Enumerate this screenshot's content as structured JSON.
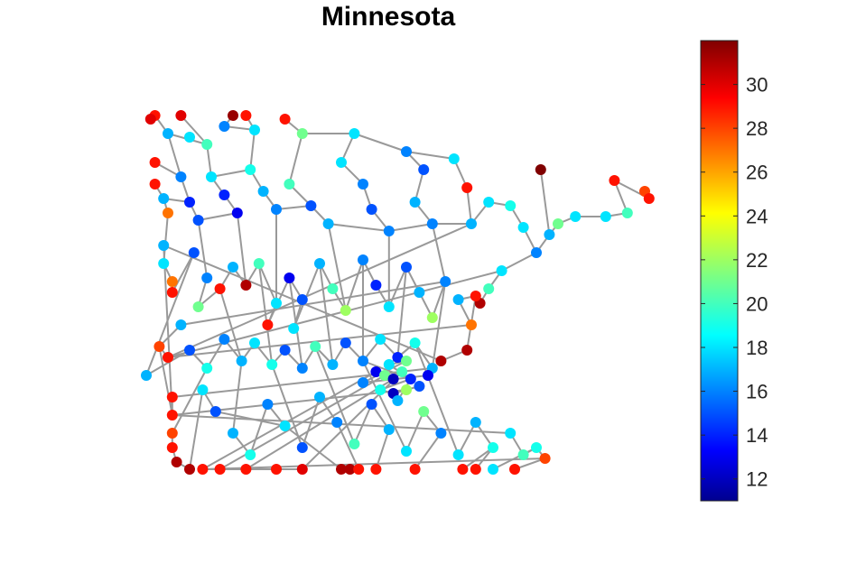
{
  "chart_data": {
    "type": "scatter",
    "subtype": "graph-network",
    "title": "Minnesota",
    "xlabel": "",
    "ylabel": "",
    "axes_visible": false,
    "edge_color": "#999999",
    "colormap": "jet",
    "colorbar": {
      "range": [
        11,
        32
      ],
      "ticks": [
        12,
        14,
        16,
        18,
        20,
        22,
        24,
        26,
        28,
        30
      ],
      "tick_labels": [
        "12",
        "14",
        "16",
        "18",
        "20",
        "22",
        "24",
        "26",
        "28",
        "30"
      ],
      "placement": "right"
    },
    "nodes": [
      {
        "x": 0.02,
        "y": 0.98,
        "v": 29
      },
      {
        "x": 0.08,
        "y": 0.98,
        "v": 30
      },
      {
        "x": 0.2,
        "y": 0.98,
        "v": 31.5
      },
      {
        "x": 0.23,
        "y": 0.98,
        "v": 29
      },
      {
        "x": 0.32,
        "y": 0.97,
        "v": 29
      },
      {
        "x": 0.01,
        "y": 0.97,
        "v": 30
      },
      {
        "x": 0.05,
        "y": 0.93,
        "v": 17
      },
      {
        "x": 0.1,
        "y": 0.92,
        "v": 18
      },
      {
        "x": 0.18,
        "y": 0.95,
        "v": 16
      },
      {
        "x": 0.25,
        "y": 0.94,
        "v": 18
      },
      {
        "x": 0.36,
        "y": 0.93,
        "v": 21
      },
      {
        "x": 0.48,
        "y": 0.93,
        "v": 18
      },
      {
        "x": 0.14,
        "y": 0.9,
        "v": 20
      },
      {
        "x": 0.02,
        "y": 0.85,
        "v": 29
      },
      {
        "x": 0.02,
        "y": 0.79,
        "v": 29
      },
      {
        "x": 0.04,
        "y": 0.75,
        "v": 17
      },
      {
        "x": 0.05,
        "y": 0.71,
        "v": 27
      },
      {
        "x": 0.08,
        "y": 0.81,
        "v": 16
      },
      {
        "x": 0.1,
        "y": 0.74,
        "v": 14
      },
      {
        "x": 0.12,
        "y": 0.69,
        "v": 15
      },
      {
        "x": 0.15,
        "y": 0.81,
        "v": 18
      },
      {
        "x": 0.18,
        "y": 0.76,
        "v": 14
      },
      {
        "x": 0.21,
        "y": 0.71,
        "v": 13
      },
      {
        "x": 0.24,
        "y": 0.83,
        "v": 19
      },
      {
        "x": 0.27,
        "y": 0.77,
        "v": 17
      },
      {
        "x": 0.3,
        "y": 0.72,
        "v": 16
      },
      {
        "x": 0.33,
        "y": 0.79,
        "v": 20
      },
      {
        "x": 0.38,
        "y": 0.73,
        "v": 15
      },
      {
        "x": 0.42,
        "y": 0.68,
        "v": 17
      },
      {
        "x": 0.45,
        "y": 0.85,
        "v": 18
      },
      {
        "x": 0.5,
        "y": 0.79,
        "v": 16
      },
      {
        "x": 0.52,
        "y": 0.72,
        "v": 15
      },
      {
        "x": 0.56,
        "y": 0.66,
        "v": 16
      },
      {
        "x": 0.6,
        "y": 0.88,
        "v": 16
      },
      {
        "x": 0.64,
        "y": 0.83,
        "v": 15
      },
      {
        "x": 0.62,
        "y": 0.74,
        "v": 17
      },
      {
        "x": 0.66,
        "y": 0.68,
        "v": 16
      },
      {
        "x": 0.71,
        "y": 0.86,
        "v": 18
      },
      {
        "x": 0.74,
        "y": 0.78,
        "v": 29
      },
      {
        "x": 0.75,
        "y": 0.68,
        "v": 17
      },
      {
        "x": 0.79,
        "y": 0.74,
        "v": 18
      },
      {
        "x": 0.84,
        "y": 0.73,
        "v": 19
      },
      {
        "x": 0.87,
        "y": 0.67,
        "v": 18
      },
      {
        "x": 0.9,
        "y": 0.6,
        "v": 16
      },
      {
        "x": 0.93,
        "y": 0.65,
        "v": 17
      },
      {
        "x": 0.95,
        "y": 0.68,
        "v": 21
      },
      {
        "x": 0.91,
        "y": 0.83,
        "v": 32
      },
      {
        "x": 0.99,
        "y": 0.7,
        "v": 18
      },
      {
        "x": 1.06,
        "y": 0.7,
        "v": 18
      },
      {
        "x": 1.11,
        "y": 0.71,
        "v": 20
      },
      {
        "x": 1.08,
        "y": 0.8,
        "v": 29
      },
      {
        "x": 1.15,
        "y": 0.77,
        "v": 28
      },
      {
        "x": 1.16,
        "y": 0.75,
        "v": 29
      },
      {
        "x": 0.82,
        "y": 0.55,
        "v": 18
      },
      {
        "x": 0.79,
        "y": 0.5,
        "v": 20
      },
      {
        "x": 0.77,
        "y": 0.46,
        "v": 31
      },
      {
        "x": 0.76,
        "y": 0.48,
        "v": 29
      },
      {
        "x": 0.72,
        "y": 0.47,
        "v": 17
      },
      {
        "x": 0.75,
        "y": 0.4,
        "v": 27
      },
      {
        "x": 0.74,
        "y": 0.33,
        "v": 31
      },
      {
        "x": 0.68,
        "y": 0.3,
        "v": 31
      },
      {
        "x": 0.04,
        "y": 0.62,
        "v": 17
      },
      {
        "x": 0.04,
        "y": 0.57,
        "v": 18
      },
      {
        "x": 0.06,
        "y": 0.52,
        "v": 27
      },
      {
        "x": 0.06,
        "y": 0.49,
        "v": 29
      },
      {
        "x": 0.11,
        "y": 0.6,
        "v": 15
      },
      {
        "x": 0.14,
        "y": 0.53,
        "v": 16
      },
      {
        "x": 0.12,
        "y": 0.45,
        "v": 21
      },
      {
        "x": 0.17,
        "y": 0.5,
        "v": 29
      },
      {
        "x": 0.2,
        "y": 0.56,
        "v": 17
      },
      {
        "x": 0.23,
        "y": 0.51,
        "v": 31
      },
      {
        "x": 0.26,
        "y": 0.57,
        "v": 20
      },
      {
        "x": 0.3,
        "y": 0.46,
        "v": 18
      },
      {
        "x": 0.28,
        "y": 0.4,
        "v": 29
      },
      {
        "x": 0.33,
        "y": 0.53,
        "v": 13
      },
      {
        "x": 0.36,
        "y": 0.47,
        "v": 15
      },
      {
        "x": 0.34,
        "y": 0.39,
        "v": 18
      },
      {
        "x": 0.4,
        "y": 0.57,
        "v": 17
      },
      {
        "x": 0.43,
        "y": 0.5,
        "v": 20
      },
      {
        "x": 0.46,
        "y": 0.44,
        "v": 22
      },
      {
        "x": 0.5,
        "y": 0.58,
        "v": 16
      },
      {
        "x": 0.53,
        "y": 0.51,
        "v": 14
      },
      {
        "x": 0.56,
        "y": 0.45,
        "v": 18
      },
      {
        "x": 0.6,
        "y": 0.56,
        "v": 15
      },
      {
        "x": 0.63,
        "y": 0.49,
        "v": 17
      },
      {
        "x": 0.66,
        "y": 0.42,
        "v": 22
      },
      {
        "x": 0.69,
        "y": 0.52,
        "v": 16
      },
      {
        "x": 0.08,
        "y": 0.4,
        "v": 17
      },
      {
        "x": 0.03,
        "y": 0.34,
        "v": 28
      },
      {
        "x": 0.05,
        "y": 0.31,
        "v": 29
      },
      {
        "x": 0.0,
        "y": 0.26,
        "v": 17
      },
      {
        "x": 0.1,
        "y": 0.33,
        "v": 15
      },
      {
        "x": 0.14,
        "y": 0.28,
        "v": 19
      },
      {
        "x": 0.18,
        "y": 0.36,
        "v": 16
      },
      {
        "x": 0.22,
        "y": 0.3,
        "v": 17
      },
      {
        "x": 0.25,
        "y": 0.35,
        "v": 18
      },
      {
        "x": 0.29,
        "y": 0.29,
        "v": 19
      },
      {
        "x": 0.32,
        "y": 0.33,
        "v": 15
      },
      {
        "x": 0.36,
        "y": 0.28,
        "v": 16
      },
      {
        "x": 0.39,
        "y": 0.34,
        "v": 20
      },
      {
        "x": 0.43,
        "y": 0.29,
        "v": 17
      },
      {
        "x": 0.46,
        "y": 0.35,
        "v": 15
      },
      {
        "x": 0.5,
        "y": 0.3,
        "v": 16
      },
      {
        "x": 0.54,
        "y": 0.36,
        "v": 18
      },
      {
        "x": 0.58,
        "y": 0.31,
        "v": 14
      },
      {
        "x": 0.62,
        "y": 0.35,
        "v": 19
      },
      {
        "x": 0.66,
        "y": 0.28,
        "v": 17
      },
      {
        "x": 0.06,
        "y": 0.2,
        "v": 29
      },
      {
        "x": 0.06,
        "y": 0.15,
        "v": 29
      },
      {
        "x": 0.06,
        "y": 0.1,
        "v": 28
      },
      {
        "x": 0.06,
        "y": 0.06,
        "v": 29
      },
      {
        "x": 0.07,
        "y": 0.02,
        "v": 31
      },
      {
        "x": 0.1,
        "y": 0.0,
        "v": 31
      },
      {
        "x": 0.13,
        "y": 0.22,
        "v": 18
      },
      {
        "x": 0.16,
        "y": 0.16,
        "v": 15
      },
      {
        "x": 0.2,
        "y": 0.1,
        "v": 17
      },
      {
        "x": 0.24,
        "y": 0.04,
        "v": 19
      },
      {
        "x": 0.28,
        "y": 0.18,
        "v": 16
      },
      {
        "x": 0.32,
        "y": 0.12,
        "v": 18
      },
      {
        "x": 0.36,
        "y": 0.06,
        "v": 15
      },
      {
        "x": 0.4,
        "y": 0.2,
        "v": 17
      },
      {
        "x": 0.44,
        "y": 0.13,
        "v": 16
      },
      {
        "x": 0.48,
        "y": 0.07,
        "v": 20
      },
      {
        "x": 0.52,
        "y": 0.18,
        "v": 15
      },
      {
        "x": 0.56,
        "y": 0.11,
        "v": 17
      },
      {
        "x": 0.6,
        "y": 0.05,
        "v": 18
      },
      {
        "x": 0.64,
        "y": 0.16,
        "v": 21
      },
      {
        "x": 0.68,
        "y": 0.1,
        "v": 16
      },
      {
        "x": 0.72,
        "y": 0.04,
        "v": 18
      },
      {
        "x": 0.76,
        "y": 0.13,
        "v": 17
      },
      {
        "x": 0.8,
        "y": 0.06,
        "v": 19
      },
      {
        "x": 0.84,
        "y": 0.1,
        "v": 18
      },
      {
        "x": 0.87,
        "y": 0.04,
        "v": 20
      },
      {
        "x": 0.9,
        "y": 0.06,
        "v": 19
      },
      {
        "x": 0.92,
        "y": 0.03,
        "v": 28
      },
      {
        "x": 0.13,
        "y": 0.0,
        "v": 29
      },
      {
        "x": 0.17,
        "y": 0.0,
        "v": 29
      },
      {
        "x": 0.23,
        "y": 0.0,
        "v": 29
      },
      {
        "x": 0.3,
        "y": 0.0,
        "v": 29
      },
      {
        "x": 0.36,
        "y": 0.0,
        "v": 30
      },
      {
        "x": 0.45,
        "y": 0.0,
        "v": 31
      },
      {
        "x": 0.47,
        "y": 0.0,
        "v": 31
      },
      {
        "x": 0.49,
        "y": 0.0,
        "v": 29
      },
      {
        "x": 0.53,
        "y": 0.0,
        "v": 29
      },
      {
        "x": 0.62,
        "y": 0.0,
        "v": 29
      },
      {
        "x": 0.73,
        "y": 0.0,
        "v": 29
      },
      {
        "x": 0.76,
        "y": 0.0,
        "v": 29
      },
      {
        "x": 0.8,
        "y": 0.0,
        "v": 18
      },
      {
        "x": 0.85,
        "y": 0.0,
        "v": 29
      },
      {
        "x": 0.53,
        "y": 0.27,
        "v": 13
      },
      {
        "x": 0.55,
        "y": 0.26,
        "v": 21
      },
      {
        "x": 0.57,
        "y": 0.25,
        "v": 12
      },
      {
        "x": 0.59,
        "y": 0.27,
        "v": 20
      },
      {
        "x": 0.61,
        "y": 0.25,
        "v": 14
      },
      {
        "x": 0.54,
        "y": 0.22,
        "v": 19
      },
      {
        "x": 0.57,
        "y": 0.21,
        "v": 12
      },
      {
        "x": 0.6,
        "y": 0.22,
        "v": 22
      },
      {
        "x": 0.63,
        "y": 0.23,
        "v": 15
      },
      {
        "x": 0.56,
        "y": 0.29,
        "v": 18
      },
      {
        "x": 0.6,
        "y": 0.3,
        "v": 21
      },
      {
        "x": 0.5,
        "y": 0.24,
        "v": 16
      },
      {
        "x": 0.65,
        "y": 0.26,
        "v": 13
      },
      {
        "x": 0.58,
        "y": 0.19,
        "v": 17
      }
    ],
    "edges": [
      [
        0,
        6
      ],
      [
        6,
        12
      ],
      [
        12,
        1
      ],
      [
        6,
        17
      ],
      [
        17,
        18
      ],
      [
        18,
        19
      ],
      [
        12,
        20
      ],
      [
        20,
        21
      ],
      [
        21,
        22
      ],
      [
        20,
        23
      ],
      [
        23,
        24
      ],
      [
        24,
        25
      ],
      [
        2,
        8
      ],
      [
        8,
        9
      ],
      [
        9,
        23
      ],
      [
        3,
        9
      ],
      [
        4,
        10
      ],
      [
        10,
        11
      ],
      [
        11,
        29
      ],
      [
        29,
        30
      ],
      [
        30,
        31
      ],
      [
        31,
        32
      ],
      [
        10,
        26
      ],
      [
        26,
        27
      ],
      [
        27,
        28
      ],
      [
        28,
        32
      ],
      [
        25,
        27
      ],
      [
        19,
        22
      ],
      [
        11,
        33
      ],
      [
        33,
        34
      ],
      [
        34,
        35
      ],
      [
        35,
        36
      ],
      [
        33,
        37
      ],
      [
        37,
        38
      ],
      [
        38,
        39
      ],
      [
        39,
        40
      ],
      [
        40,
        41
      ],
      [
        41,
        42
      ],
      [
        42,
        43
      ],
      [
        43,
        44
      ],
      [
        44,
        45
      ],
      [
        45,
        47
      ],
      [
        47,
        48
      ],
      [
        48,
        49
      ],
      [
        49,
        50
      ],
      [
        50,
        52
      ],
      [
        52,
        51
      ],
      [
        46,
        44
      ],
      [
        36,
        39
      ],
      [
        32,
        36
      ],
      [
        13,
        17
      ],
      [
        14,
        15
      ],
      [
        15,
        16
      ],
      [
        16,
        62
      ],
      [
        62,
        63
      ],
      [
        63,
        64
      ],
      [
        64,
        65
      ],
      [
        15,
        18
      ],
      [
        19,
        66
      ],
      [
        66,
        67
      ],
      [
        67,
        68
      ],
      [
        68,
        69
      ],
      [
        69,
        70
      ],
      [
        70,
        71
      ],
      [
        71,
        72
      ],
      [
        72,
        73
      ],
      [
        73,
        74
      ],
      [
        74,
        75
      ],
      [
        75,
        76
      ],
      [
        76,
        77
      ],
      [
        77,
        78
      ],
      [
        78,
        79
      ],
      [
        79,
        80
      ],
      [
        80,
        81
      ],
      [
        81,
        82
      ],
      [
        82,
        83
      ],
      [
        83,
        84
      ],
      [
        84,
        85
      ],
      [
        85,
        86
      ],
      [
        86,
        87
      ],
      [
        87,
        88
      ],
      [
        88,
        89
      ],
      [
        89,
        58
      ],
      [
        58,
        57
      ],
      [
        57,
        56
      ],
      [
        56,
        59
      ],
      [
        59,
        60
      ],
      [
        60,
        61
      ],
      [
        53,
        54
      ],
      [
        54,
        55
      ],
      [
        43,
        53
      ],
      [
        53,
        89
      ],
      [
        22,
        70
      ],
      [
        25,
        72
      ],
      [
        28,
        79
      ],
      [
        32,
        82
      ],
      [
        36,
        86
      ],
      [
        39,
        89
      ],
      [
        65,
        90
      ],
      [
        90,
        91
      ],
      [
        91,
        92
      ],
      [
        92,
        93
      ],
      [
        93,
        94
      ],
      [
        94,
        95
      ],
      [
        95,
        96
      ],
      [
        96,
        97
      ],
      [
        97,
        98
      ],
      [
        98,
        99
      ],
      [
        99,
        100
      ],
      [
        100,
        101
      ],
      [
        101,
        102
      ],
      [
        102,
        103
      ],
      [
        103,
        104
      ],
      [
        104,
        105
      ],
      [
        105,
        106
      ],
      [
        106,
        107
      ],
      [
        107,
        108
      ],
      [
        108,
        61
      ],
      [
        68,
        94
      ],
      [
        71,
        96
      ],
      [
        74,
        98
      ],
      [
        77,
        100
      ],
      [
        80,
        102
      ],
      [
        83,
        104
      ],
      [
        86,
        106
      ],
      [
        88,
        108
      ],
      [
        92,
        109
      ],
      [
        109,
        110
      ],
      [
        110,
        111
      ],
      [
        111,
        112
      ],
      [
        112,
        113
      ],
      [
        113,
        114
      ],
      [
        94,
        115
      ],
      [
        115,
        116
      ],
      [
        116,
        117
      ],
      [
        117,
        118
      ],
      [
        96,
        119
      ],
      [
        119,
        120
      ],
      [
        120,
        121
      ],
      [
        99,
        122
      ],
      [
        122,
        123
      ],
      [
        123,
        124
      ],
      [
        102,
        125
      ],
      [
        125,
        126
      ],
      [
        126,
        127
      ],
      [
        105,
        128
      ],
      [
        128,
        129
      ],
      [
        129,
        130
      ],
      [
        108,
        131
      ],
      [
        131,
        132
      ],
      [
        132,
        133
      ],
      [
        133,
        134
      ],
      [
        134,
        135
      ],
      [
        135,
        136
      ],
      [
        136,
        137
      ],
      [
        137,
        138
      ],
      [
        138,
        139
      ],
      [
        114,
        118
      ],
      [
        118,
        140
      ],
      [
        140,
        141
      ],
      [
        121,
        142
      ],
      [
        124,
        143
      ],
      [
        127,
        144
      ],
      [
        130,
        145
      ],
      [
        130,
        146
      ],
      [
        133,
        147
      ],
      [
        134,
        148
      ],
      [
        135,
        149
      ],
      [
        136,
        150
      ],
      [
        137,
        151
      ],
      [
        139,
        152
      ],
      [
        153,
        154
      ],
      [
        154,
        155
      ],
      [
        155,
        156
      ],
      [
        156,
        157
      ],
      [
        153,
        158
      ],
      [
        158,
        159
      ],
      [
        159,
        160
      ],
      [
        160,
        161
      ],
      [
        153,
        162
      ],
      [
        162,
        163
      ],
      [
        163,
        157
      ],
      [
        164,
        153
      ],
      [
        165,
        155
      ],
      [
        166,
        157
      ],
      [
        158,
        105
      ],
      [
        156,
        108
      ],
      [
        167,
        160
      ],
      [
        127,
        164
      ],
      [
        102,
        153
      ]
    ]
  }
}
